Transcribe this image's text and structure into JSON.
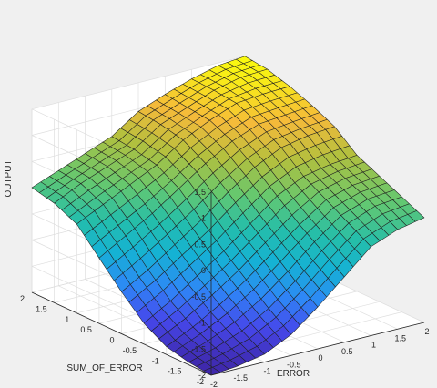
{
  "chart_data": {
    "type": "surface",
    "title": "",
    "xlabel": "ERROR",
    "ylabel": "SUM_OF_ERROR",
    "zlabel": "OUTPUT",
    "xlim": [
      -2,
      2
    ],
    "ylim": [
      -2,
      2
    ],
    "zlim": [
      -2,
      1.5
    ],
    "x_ticks": [
      "-2",
      "-1.5",
      "-1",
      "-0.5",
      "0",
      "0.5",
      "1",
      "1.5",
      "2"
    ],
    "y_ticks": [
      "-2",
      "-1.5",
      "-1",
      "-0.5",
      "0",
      "0.5",
      "1",
      "1.5",
      "2"
    ],
    "z_ticks": [
      "-2",
      "-1.5",
      "-1",
      "-0.5",
      "0",
      "0.5",
      "1",
      "1.5"
    ],
    "grid": true,
    "colormap": "parula",
    "x": [
      -2,
      -1.5,
      -1,
      -0.5,
      0,
      0.5,
      1,
      1.5,
      2
    ],
    "y": [
      -2,
      -1.5,
      -1,
      -0.5,
      0,
      0.5,
      1,
      1.5,
      2
    ],
    "z": [
      [
        -2.0,
        -1.95,
        -1.85,
        -1.6,
        -1.2,
        -0.75,
        -0.3,
        -0.1,
        0.0
      ],
      [
        -1.95,
        -1.8,
        -1.6,
        -1.3,
        -0.9,
        -0.45,
        -0.05,
        0.15,
        0.2
      ],
      [
        -1.85,
        -1.6,
        -1.3,
        -0.95,
        -0.55,
        -0.15,
        0.2,
        0.35,
        0.4
      ],
      [
        -1.6,
        -1.3,
        -0.95,
        -0.6,
        -0.2,
        0.2,
        0.45,
        0.55,
        0.6
      ],
      [
        -1.2,
        -0.9,
        -0.55,
        -0.2,
        0.2,
        0.55,
        0.8,
        0.9,
        0.95
      ],
      [
        -0.75,
        -0.45,
        -0.15,
        0.2,
        0.55,
        0.85,
        1.05,
        1.1,
        1.15
      ],
      [
        -0.3,
        -0.05,
        0.2,
        0.45,
        0.8,
        1.05,
        1.25,
        1.3,
        1.32
      ],
      [
        -0.1,
        0.15,
        0.35,
        0.55,
        0.9,
        1.1,
        1.3,
        1.42,
        1.45
      ],
      [
        0.0,
        0.2,
        0.4,
        0.6,
        0.95,
        1.15,
        1.32,
        1.45,
        1.5
      ]
    ],
    "colors": {
      "background": "#f0f0f0",
      "pane": "#ffffff",
      "grid": "#dedede",
      "axis": "#262626",
      "edge": "#202020"
    }
  }
}
